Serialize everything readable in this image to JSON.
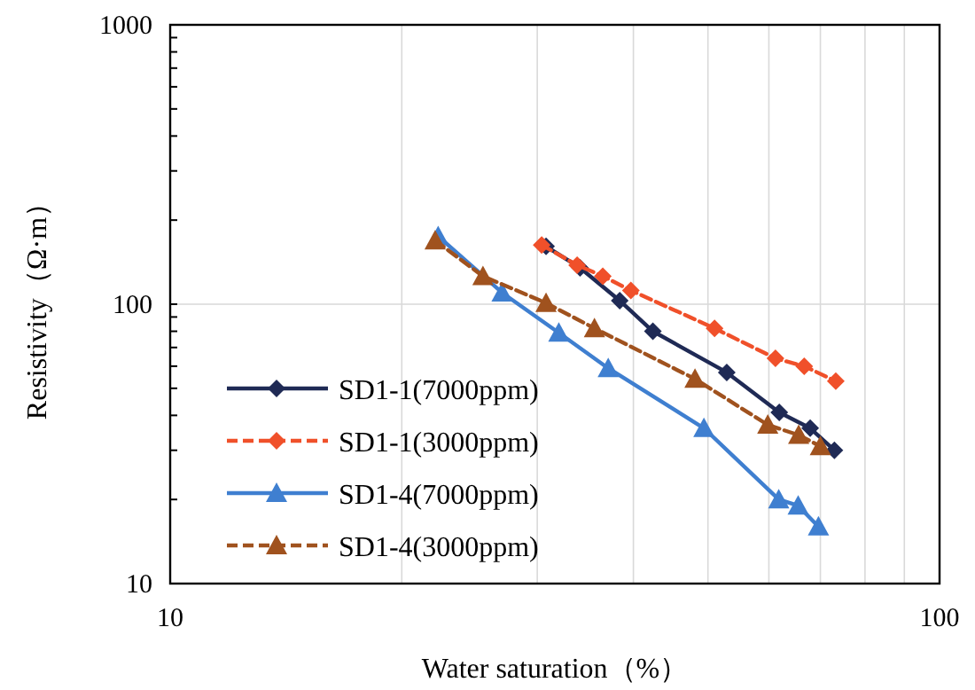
{
  "chart_data": {
    "type": "line",
    "xlabel": "Water saturation（%）",
    "ylabel": "Resistivity（Ω·m）",
    "log": "xy",
    "xlim": [
      10,
      100
    ],
    "xticks": [
      10,
      100
    ],
    "ylim": [
      10,
      1000
    ],
    "yticks": [
      10,
      100,
      1000
    ],
    "grid": true,
    "legend": "bottom left",
    "series": [
      {
        "name": "SD1-1(7000ppm)",
        "color": "#1f2a55",
        "marker": "diamond",
        "line_style": "solid",
        "x": [
          30.8,
          34.1,
          38.4,
          42.4,
          52.9,
          61.9,
          67.9,
          73.0
        ],
        "values": [
          161,
          135,
          103,
          80,
          57,
          41,
          36,
          30
        ]
      },
      {
        "name": "SD1-1(3000ppm)",
        "color": "#f0502a",
        "marker": "diamond",
        "line_style": "dashed",
        "x": [
          30.4,
          33.8,
          36.5,
          39.7,
          51.0,
          61.2,
          66.7,
          73.3
        ],
        "values": [
          163,
          138,
          126,
          112,
          82,
          64,
          60,
          53
        ]
      },
      {
        "name": "SD1-4(7000ppm)",
        "color": "#3f7fd0",
        "marker": "triangle",
        "line_style": "solid",
        "x": [
          22.3,
          27.0,
          32.0,
          37.1,
          49.4,
          61.8,
          65.5,
          69.6
        ],
        "values": [
          175,
          110,
          79,
          59,
          36,
          20,
          19,
          16
        ]
      },
      {
        "name": "SD1-4(3000ppm)",
        "color": "#a0521e",
        "marker": "triangle",
        "line_style": "dashed",
        "x": [
          22.1,
          25.5,
          30.8,
          35.6,
          48.1,
          59.8,
          65.6,
          70.0
        ],
        "values": [
          169,
          126,
          101,
          82,
          54,
          37,
          34,
          31
        ]
      }
    ]
  }
}
